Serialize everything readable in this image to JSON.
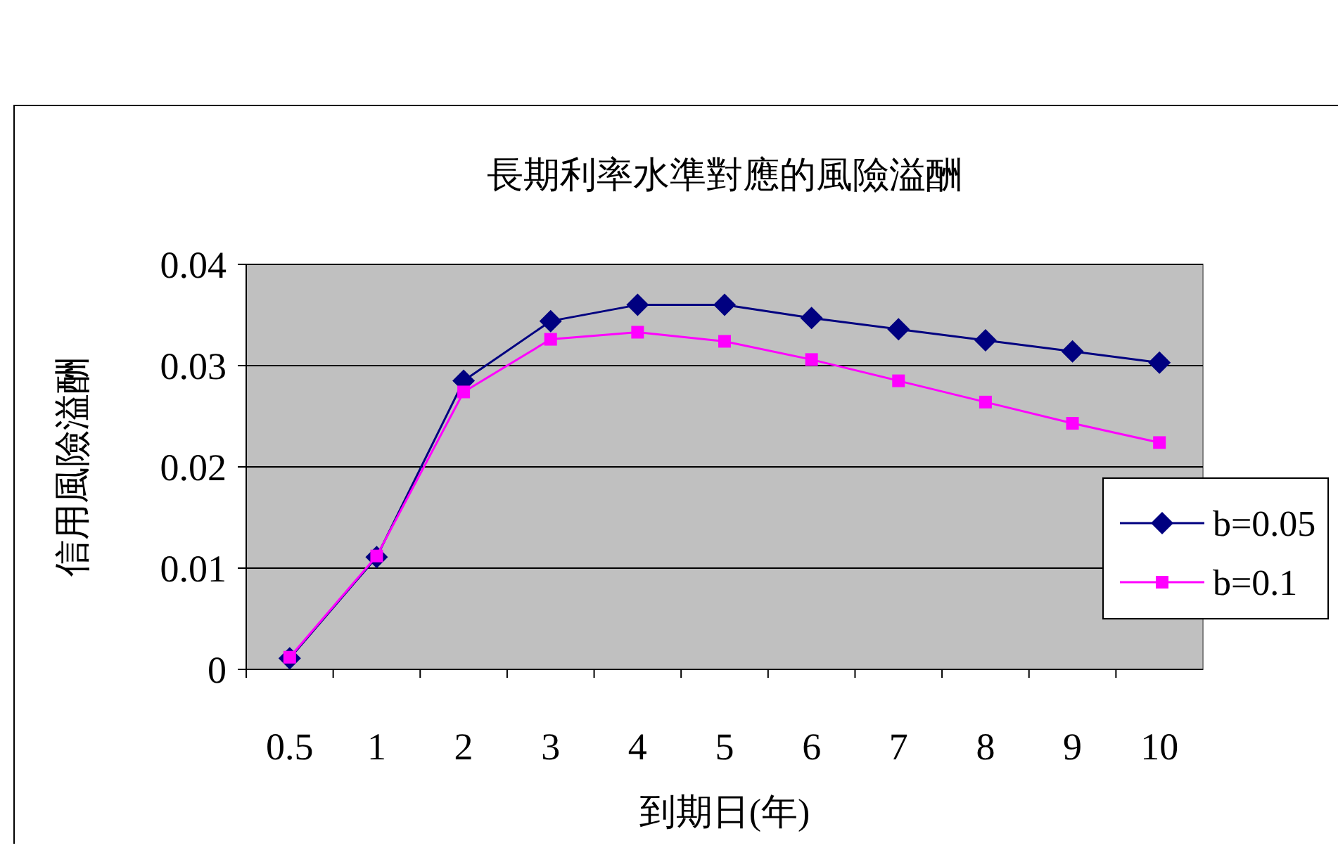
{
  "chart_data": {
    "type": "line",
    "title": "長期利率水準對應的風險溢酬",
    "xlabel": "到期日(年)",
    "ylabel": "信用風險溢酬",
    "categories": [
      "0.5",
      "1",
      "2",
      "3",
      "4",
      "5",
      "6",
      "7",
      "8",
      "9",
      "10"
    ],
    "ylim": [
      0,
      0.04
    ],
    "yticks": [
      {
        "value": 0,
        "label": "0"
      },
      0.01,
      0.02,
      0.03,
      0.04
    ],
    "grid": "y",
    "legend": "right",
    "series": [
      {
        "name": "b=0.05",
        "color": "#000080",
        "marker": "diamond",
        "values": [
          0.0011,
          0.0111,
          0.0285,
          0.0344,
          0.036,
          0.036,
          0.0347,
          0.0336,
          0.0325,
          0.0314,
          0.0303
        ]
      },
      {
        "name": "b=0.1",
        "color": "#ff00ff",
        "marker": "square",
        "values": [
          0.0012,
          0.0112,
          0.0274,
          0.0326,
          0.0333,
          0.0324,
          0.0306,
          0.0285,
          0.0264,
          0.0243,
          0.0224
        ]
      }
    ]
  }
}
